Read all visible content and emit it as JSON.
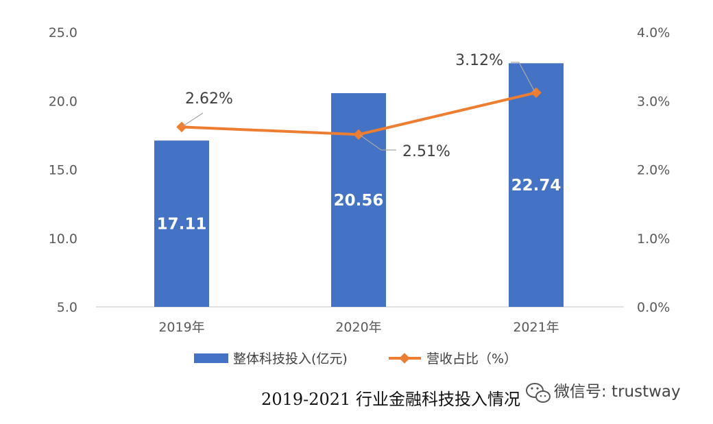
{
  "chart_data": {
    "type": "bar+line",
    "categories": [
      "2019年",
      "2020年",
      "2021年"
    ],
    "series": [
      {
        "name": "整体科技投入(亿元)",
        "type": "bar",
        "axis": "left",
        "values": [
          17.11,
          20.56,
          22.74
        ],
        "labels": [
          "17.11",
          "20.56",
          "22.74"
        ],
        "color": "#4472C4"
      },
      {
        "name": "营收占比（%）",
        "type": "line",
        "axis": "right",
        "values": [
          2.62,
          2.51,
          3.12
        ],
        "labels": [
          "2.62%",
          "2.51%",
          "3.12%"
        ],
        "color": "#ED7D31"
      }
    ],
    "y_left": {
      "range": [
        5.0,
        25.0
      ],
      "ticks": [
        "5.0",
        "10.0",
        "15.0",
        "20.0",
        "25.0"
      ]
    },
    "y_right": {
      "range": [
        0.0,
        4.0
      ],
      "ticks": [
        "0.0%",
        "1.0%",
        "2.0%",
        "3.0%",
        "4.0%"
      ]
    },
    "grid": false,
    "legend_position": "bottom"
  },
  "caption": "2019-2021 行业金融科技投入情况",
  "watermark": {
    "text": "微信号: trustway",
    "icon": "wechat-icon"
  }
}
